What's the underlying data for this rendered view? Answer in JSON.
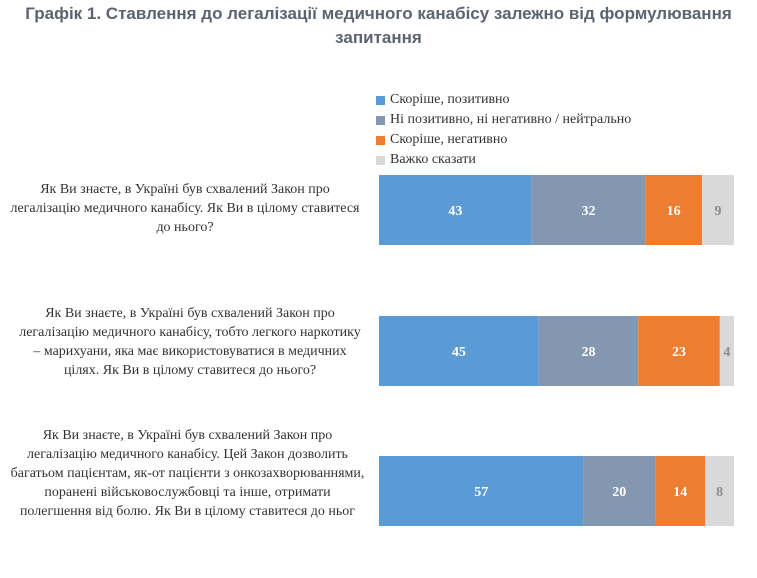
{
  "title_line1": "Графік 1. Ставлення до легалізації медичного канабісу залежно від формулювання",
  "title_line2": "запитання",
  "colors": {
    "positive": "#5b9bd5",
    "neutral": "#8497b0",
    "negative": "#ed7d31",
    "hard": "#d9d9d9"
  },
  "chart_data": {
    "type": "bar",
    "orientation": "horizontal",
    "stacked": true,
    "xlim": [
      0,
      100
    ],
    "legend_position": "top",
    "categories": [
      "Як Ви знаєте, в Україні був схвалений Закон про легалізацію медичного канабісу. Як Ви в цілому ставитеся до нього?",
      "Як Ви знаєте, в Україні був схвалений Закон про легалізацію медичного канабісу, тобто легкого наркотику – марихуани, яка має використовуватися в медичних цілях. Як Ви в цілому ставитеся до нього?",
      "Як Ви знаєте, в Україні був схвалений Закон про легалізацію медичного канабісу. Цей Закон дозволить багатьом пацієнтам, як-от пацієнти з онкозахворюваннями, поранені військовослужбовці та інше, отримати полегшення від болю. Як Ви в цілому ставитеся до ньог"
    ],
    "series": [
      {
        "name": "Скоріше, позитивно",
        "values": [
          43,
          45,
          57
        ]
      },
      {
        "name": "Ні позитивно, ні негативно / нейтрально",
        "values": [
          32,
          28,
          20
        ]
      },
      {
        "name": "Скоріше, негативно",
        "values": [
          16,
          23,
          14
        ]
      },
      {
        "name": "Важко сказати",
        "values": [
          9,
          4,
          8
        ]
      }
    ]
  }
}
